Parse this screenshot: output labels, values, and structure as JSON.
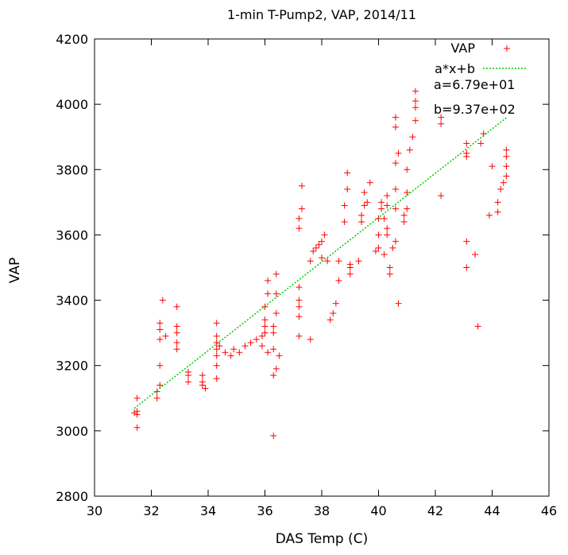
{
  "chart_data": {
    "type": "scatter",
    "title": "1-min T-Pump2, VAP, 2014/11",
    "xlabel": "DAS Temp (C)",
    "ylabel": "VAP",
    "xlim": [
      30,
      46
    ],
    "ylim": [
      2800,
      4200
    ],
    "xticks": [
      "30",
      "32",
      "34",
      "36",
      "38",
      "40",
      "42",
      "44",
      "46"
    ],
    "yticks": [
      "2800",
      "3000",
      "3200",
      "3400",
      "3600",
      "3800",
      "4000",
      "4200"
    ],
    "grid": false,
    "legend_position": "top-right",
    "series": [
      {
        "name": "VAP",
        "kind": "points",
        "color": "#ff0000",
        "marker": "plus",
        "points": [
          [
            31.5,
            3010
          ],
          [
            31.5,
            3050
          ],
          [
            31.5,
            3060
          ],
          [
            31.5,
            3100
          ],
          [
            31.4,
            3055
          ],
          [
            32.2,
            3100
          ],
          [
            32.2,
            3120
          ],
          [
            32.3,
            3140
          ],
          [
            32.3,
            3200
          ],
          [
            32.3,
            3280
          ],
          [
            32.3,
            3310
          ],
          [
            32.3,
            3330
          ],
          [
            32.4,
            3400
          ],
          [
            32.5,
            3290
          ],
          [
            32.9,
            3250
          ],
          [
            32.9,
            3270
          ],
          [
            32.9,
            3300
          ],
          [
            32.9,
            3320
          ],
          [
            32.9,
            3380
          ],
          [
            33.3,
            3150
          ],
          [
            33.3,
            3170
          ],
          [
            33.3,
            3180
          ],
          [
            33.8,
            3140
          ],
          [
            33.8,
            3150
          ],
          [
            33.8,
            3170
          ],
          [
            33.9,
            3130
          ],
          [
            34.3,
            3160
          ],
          [
            34.3,
            3200
          ],
          [
            34.3,
            3230
          ],
          [
            34.3,
            3250
          ],
          [
            34.3,
            3270
          ],
          [
            34.3,
            3290
          ],
          [
            34.3,
            3330
          ],
          [
            34.4,
            3260
          ],
          [
            34.6,
            3240
          ],
          [
            34.8,
            3230
          ],
          [
            34.9,
            3250
          ],
          [
            35.1,
            3240
          ],
          [
            35.3,
            3260
          ],
          [
            35.5,
            3270
          ],
          [
            35.7,
            3280
          ],
          [
            35.9,
            3260
          ],
          [
            35.9,
            3290
          ],
          [
            36.0,
            3300
          ],
          [
            36.0,
            3320
          ],
          [
            36.0,
            3340
          ],
          [
            36.0,
            3380
          ],
          [
            36.1,
            3420
          ],
          [
            36.1,
            3460
          ],
          [
            36.1,
            3240
          ],
          [
            36.3,
            3250
          ],
          [
            36.3,
            3300
          ],
          [
            36.3,
            3320
          ],
          [
            36.3,
            2985
          ],
          [
            36.4,
            3360
          ],
          [
            36.4,
            3420
          ],
          [
            36.4,
            3480
          ],
          [
            36.5,
            3230
          ],
          [
            36.4,
            3190
          ],
          [
            36.3,
            3170
          ],
          [
            37.2,
            3290
          ],
          [
            37.2,
            3350
          ],
          [
            37.2,
            3380
          ],
          [
            37.2,
            3400
          ],
          [
            37.2,
            3440
          ],
          [
            37.2,
            3620
          ],
          [
            37.2,
            3650
          ],
          [
            37.3,
            3680
          ],
          [
            37.3,
            3750
          ],
          [
            37.6,
            3280
          ],
          [
            37.6,
            3520
          ],
          [
            37.7,
            3550
          ],
          [
            37.8,
            3560
          ],
          [
            37.9,
            3570
          ],
          [
            38.0,
            3580
          ],
          [
            38.0,
            3530
          ],
          [
            38.1,
            3600
          ],
          [
            38.2,
            3520
          ],
          [
            38.3,
            3340
          ],
          [
            38.4,
            3360
          ],
          [
            38.5,
            3390
          ],
          [
            38.6,
            3520
          ],
          [
            38.6,
            3460
          ],
          [
            38.8,
            3640
          ],
          [
            38.8,
            3690
          ],
          [
            38.9,
            3740
          ],
          [
            38.9,
            3790
          ],
          [
            39.0,
            3500
          ],
          [
            39.0,
            3510
          ],
          [
            39.0,
            3480
          ],
          [
            39.3,
            3520
          ],
          [
            39.4,
            3640
          ],
          [
            39.4,
            3660
          ],
          [
            39.5,
            3690
          ],
          [
            39.5,
            3730
          ],
          [
            39.6,
            3700
          ],
          [
            39.7,
            3760
          ],
          [
            39.9,
            3550
          ],
          [
            40.0,
            3560
          ],
          [
            40.0,
            3600
          ],
          [
            40.0,
            3650
          ],
          [
            40.1,
            3680
          ],
          [
            40.1,
            3700
          ],
          [
            40.2,
            3540
          ],
          [
            40.2,
            3650
          ],
          [
            40.3,
            3600
          ],
          [
            40.3,
            3620
          ],
          [
            40.3,
            3690
          ],
          [
            40.3,
            3720
          ],
          [
            40.4,
            3480
          ],
          [
            40.4,
            3500
          ],
          [
            40.5,
            3560
          ],
          [
            40.6,
            3580
          ],
          [
            40.6,
            3680
          ],
          [
            40.6,
            3740
          ],
          [
            40.6,
            3820
          ],
          [
            40.6,
            3930
          ],
          [
            40.6,
            3960
          ],
          [
            40.7,
            3850
          ],
          [
            40.7,
            3390
          ],
          [
            40.9,
            3640
          ],
          [
            40.9,
            3660
          ],
          [
            41.0,
            3680
          ],
          [
            41.0,
            3730
          ],
          [
            41.0,
            3800
          ],
          [
            41.1,
            3860
          ],
          [
            41.2,
            3900
          ],
          [
            41.3,
            3950
          ],
          [
            41.3,
            3990
          ],
          [
            41.3,
            4010
          ],
          [
            41.3,
            4040
          ],
          [
            42.2,
            3720
          ],
          [
            42.2,
            3940
          ],
          [
            42.2,
            3960
          ],
          [
            43.1,
            3500
          ],
          [
            43.1,
            3580
          ],
          [
            43.1,
            3840
          ],
          [
            43.1,
            3850
          ],
          [
            43.1,
            3880
          ],
          [
            43.4,
            3540
          ],
          [
            43.5,
            3320
          ],
          [
            43.6,
            3880
          ],
          [
            43.7,
            3910
          ],
          [
            43.9,
            3660
          ],
          [
            44.0,
            3810
          ],
          [
            44.2,
            3670
          ],
          [
            44.2,
            3700
          ],
          [
            44.3,
            3740
          ],
          [
            44.4,
            3760
          ],
          [
            44.5,
            3780
          ],
          [
            44.5,
            3810
          ],
          [
            44.5,
            3840
          ],
          [
            44.5,
            3860
          ]
        ]
      },
      {
        "name": "a*x+b",
        "kind": "line",
        "color": "#00cc00",
        "dash": "dotted",
        "slope": 67.9,
        "intercept": 937,
        "x_range": [
          31.4,
          44.5
        ]
      }
    ],
    "annotations": [
      "a=6.79e+01",
      "b=9.37e+02"
    ]
  }
}
